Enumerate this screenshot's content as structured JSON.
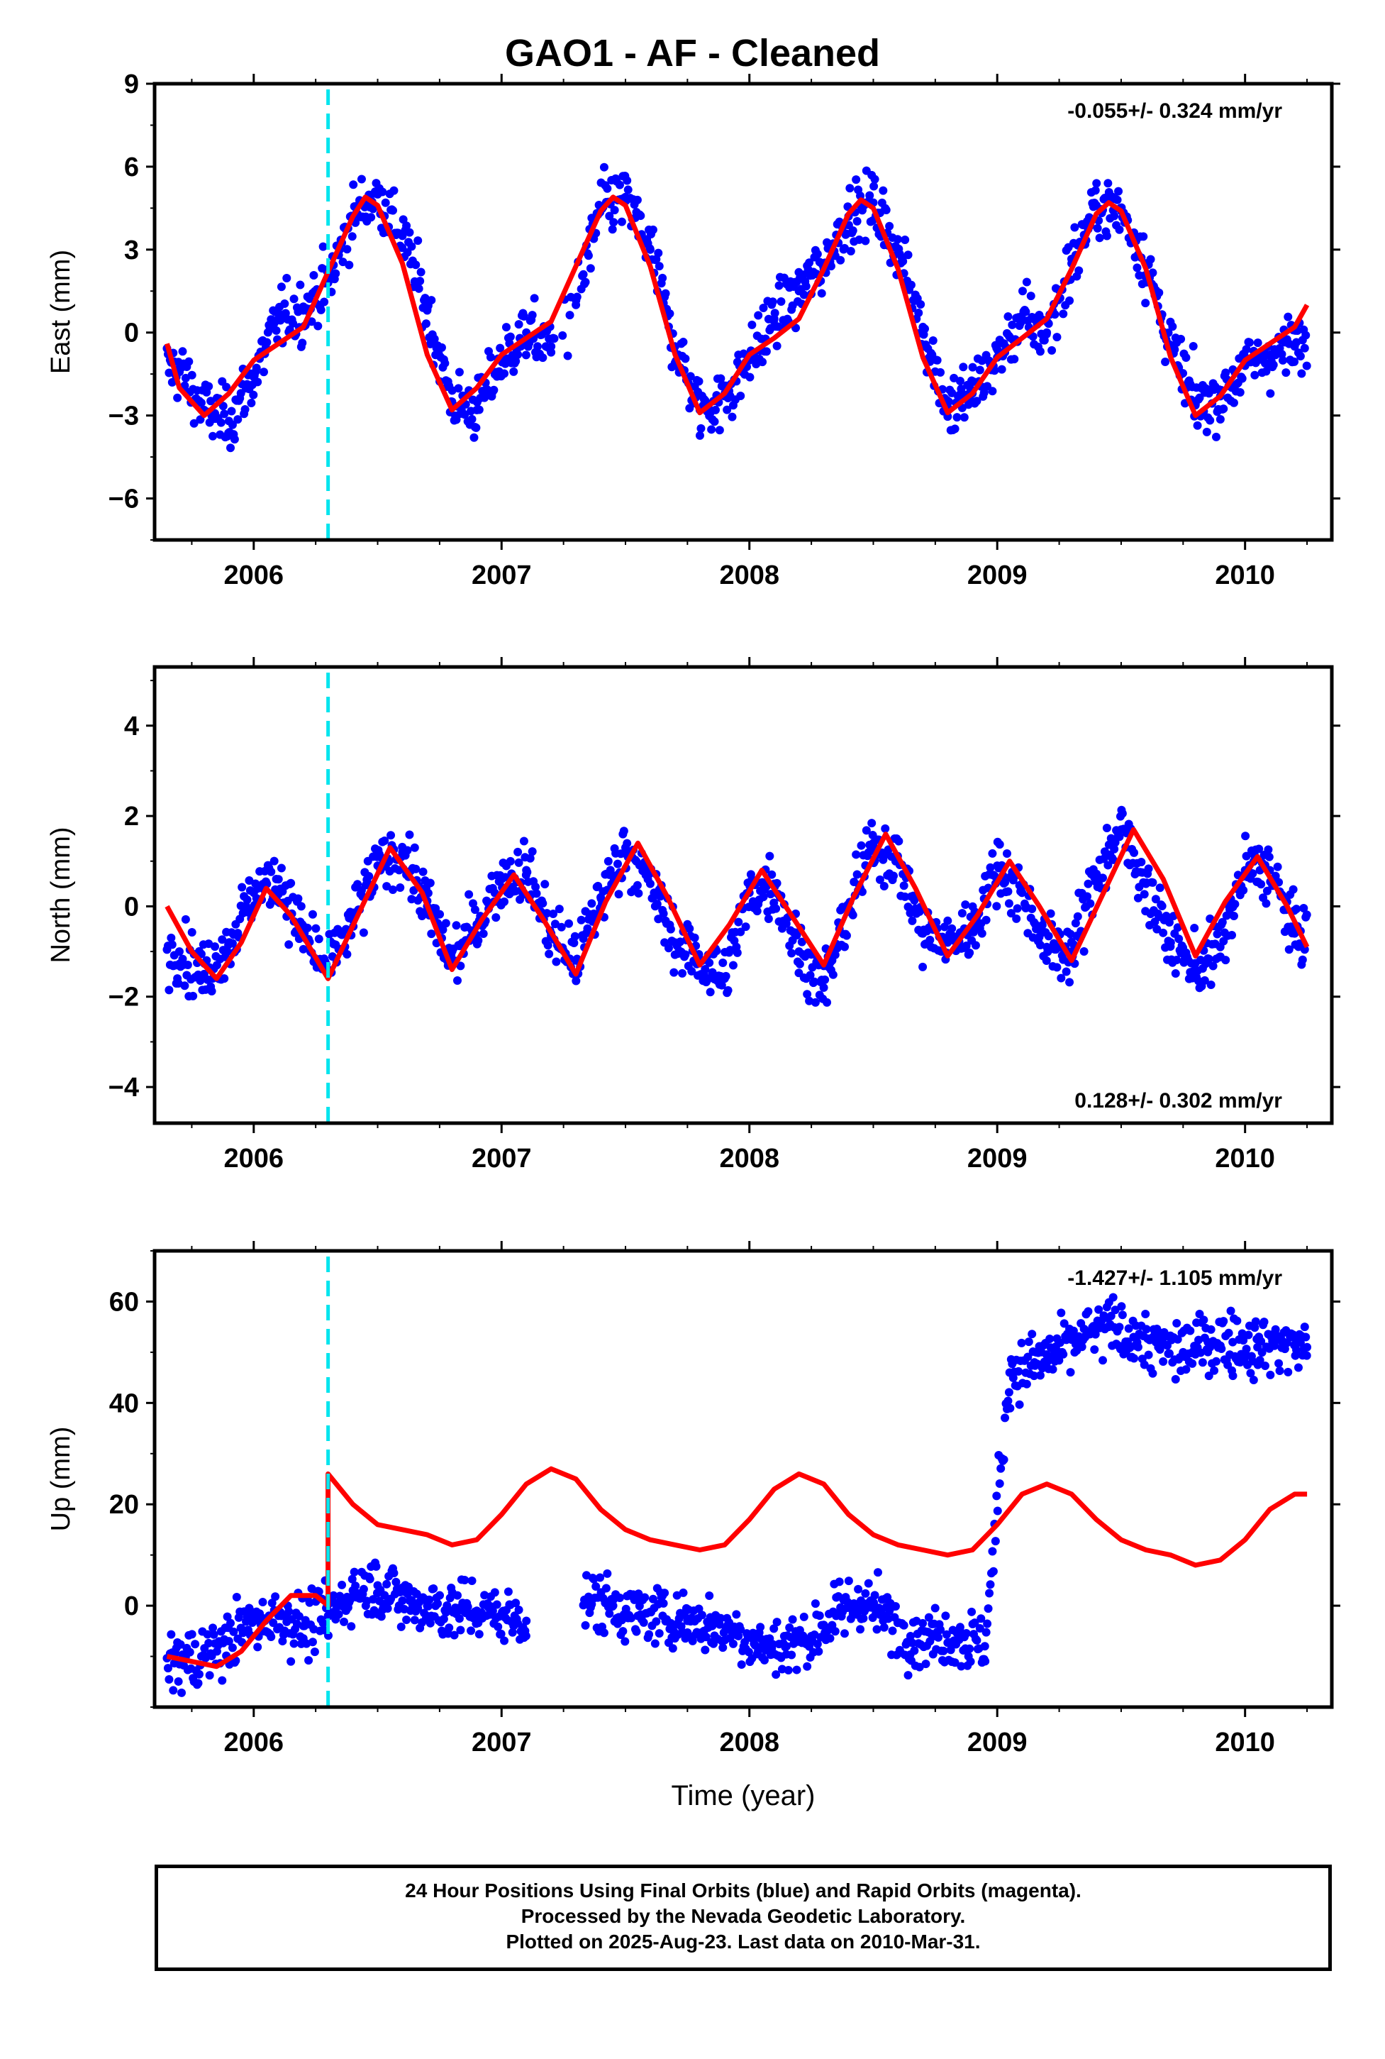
{
  "title": "GAO1  - AF - Cleaned",
  "footer": {
    "line1": "24 Hour Positions Using Final Orbits (blue) and Rapid Orbits (magenta).",
    "line2": "Processed by the Nevada Geodetic Laboratory.",
    "line3": "Plotted on 2025-Aug-23. Last data on 2010-Mar-31."
  },
  "colors": {
    "points": "#0000ff",
    "fit": "#ff0000",
    "event_line": "#00e5ee",
    "axis": "#000000"
  },
  "chart_data": [
    {
      "type": "scatter",
      "ylabel": "East (mm)",
      "xlabel": "",
      "rate_text": "-0.055+/- 0.324 mm/yr",
      "rate_position": "top-right",
      "xlim": [
        2005.6,
        2010.35
      ],
      "ylim": [
        -7.5,
        9
      ],
      "yticks": [
        -6,
        -3,
        0,
        3,
        6,
        9
      ],
      "ytick_labels": [
        "−6",
        "−3",
        "0",
        "3",
        "6",
        "9"
      ],
      "xticks": [
        2006,
        2007,
        2008,
        2009,
        2010
      ],
      "xtick_labels": [
        "2006",
        "2007",
        "2008",
        "2009",
        "2010"
      ],
      "event_x": 2006.3,
      "data_range": [
        2005.65,
        2010.25
      ],
      "series": [
        {
          "kind": "points",
          "x": [
            2005.7,
            2005.8,
            2005.9,
            2006.0,
            2006.1,
            2006.2,
            2006.3,
            2006.4,
            2006.5,
            2006.6,
            2006.7,
            2006.8,
            2006.9,
            2007.0,
            2007.1,
            2007.2,
            2007.3,
            2007.4,
            2007.5,
            2007.6,
            2007.7,
            2007.8,
            2007.9,
            2008.0,
            2008.1,
            2008.2,
            2008.3,
            2008.4,
            2008.5,
            2008.6,
            2008.7,
            2008.8,
            2008.9,
            2009.0,
            2009.1,
            2009.2,
            2009.3,
            2009.4,
            2009.5,
            2009.6,
            2009.7,
            2009.8,
            2009.9,
            2010.0,
            2010.1,
            2010.2
          ],
          "y": [
            -1.3,
            -2.8,
            -3.2,
            -1.6,
            0.5,
            0.8,
            1.8,
            4.2,
            5.0,
            3.5,
            0.8,
            -2.5,
            -2.8,
            -1.0,
            0.0,
            -0.5,
            1.0,
            4.5,
            4.9,
            3.0,
            -0.5,
            -2.8,
            -2.3,
            -1.0,
            0.5,
            1.5,
            2.5,
            4.2,
            4.7,
            3.0,
            0.2,
            -2.7,
            -2.2,
            -0.9,
            0.5,
            0.0,
            2.5,
            4.6,
            4.4,
            2.5,
            -0.5,
            -2.6,
            -2.3,
            -1.2,
            -0.8,
            -0.5
          ]
        },
        {
          "kind": "fit",
          "x": [
            2005.65,
            2005.7,
            2005.8,
            2005.9,
            2006.0,
            2006.1,
            2006.2,
            2006.3,
            2006.4,
            2006.45,
            2006.5,
            2006.6,
            2006.7,
            2006.8,
            2006.9,
            2007.0,
            2007.1,
            2007.2,
            2007.3,
            2007.4,
            2007.45,
            2007.5,
            2007.6,
            2007.7,
            2007.8,
            2007.9,
            2008.0,
            2008.1,
            2008.2,
            2008.3,
            2008.4,
            2008.45,
            2008.5,
            2008.6,
            2008.7,
            2008.8,
            2008.9,
            2009.0,
            2009.1,
            2009.2,
            2009.3,
            2009.4,
            2009.45,
            2009.5,
            2009.6,
            2009.7,
            2009.8,
            2009.9,
            2010.0,
            2010.1,
            2010.2,
            2010.25
          ],
          "y": [
            -0.4,
            -2.0,
            -3.0,
            -2.2,
            -1.0,
            -0.4,
            0.2,
            2.2,
            4.2,
            4.9,
            4.6,
            2.5,
            -0.8,
            -2.8,
            -2.0,
            -0.8,
            -0.2,
            0.4,
            2.4,
            4.4,
            4.9,
            4.6,
            2.4,
            -0.8,
            -2.9,
            -2.2,
            -0.8,
            -0.2,
            0.5,
            2.3,
            4.3,
            4.8,
            4.5,
            2.3,
            -0.9,
            -2.9,
            -2.2,
            -0.9,
            -0.2,
            0.5,
            2.3,
            4.3,
            4.7,
            4.4,
            2.3,
            -0.9,
            -3.0,
            -2.3,
            -1.0,
            -0.4,
            0.2,
            1.0
          ]
        }
      ]
    },
    {
      "type": "scatter",
      "ylabel": "North (mm)",
      "xlabel": "",
      "rate_text": "0.128+/- 0.302 mm/yr",
      "rate_position": "bottom-right",
      "xlim": [
        2005.6,
        2010.35
      ],
      "ylim": [
        -4.8,
        5.3
      ],
      "yticks": [
        -4,
        -2,
        0,
        2,
        4
      ],
      "ytick_labels": [
        "−4",
        "−2",
        "0",
        "2",
        "4"
      ],
      "xticks": [
        2006,
        2007,
        2008,
        2009,
        2010
      ],
      "xtick_labels": [
        "2006",
        "2007",
        "2008",
        "2009",
        "2010"
      ],
      "event_x": 2006.3,
      "data_range": [
        2005.65,
        2010.25
      ],
      "series": [
        {
          "kind": "points",
          "x": [
            2005.7,
            2005.8,
            2005.9,
            2006.0,
            2006.1,
            2006.2,
            2006.3,
            2006.4,
            2006.5,
            2006.6,
            2006.7,
            2006.8,
            2006.9,
            2007.0,
            2007.1,
            2007.2,
            2007.3,
            2007.4,
            2007.5,
            2007.6,
            2007.7,
            2007.8,
            2007.9,
            2008.0,
            2008.1,
            2008.2,
            2008.3,
            2008.4,
            2008.5,
            2008.6,
            2008.7,
            2008.8,
            2008.9,
            2009.0,
            2009.1,
            2009.2,
            2009.3,
            2009.4,
            2009.5,
            2009.6,
            2009.7,
            2009.8,
            2009.9,
            2010.0,
            2010.1,
            2010.2
          ],
          "y": [
            -1.0,
            -1.5,
            -0.8,
            0.3,
            0.6,
            -0.6,
            -1.4,
            -0.3,
            0.9,
            1.2,
            0.0,
            -1.2,
            -0.4,
            0.6,
            0.8,
            -0.6,
            -1.2,
            0.2,
            1.3,
            0.5,
            -0.8,
            -1.2,
            -1.6,
            0.3,
            0.5,
            -1.0,
            -1.8,
            -0.1,
            1.4,
            1.0,
            -0.6,
            -0.8,
            -0.5,
            0.9,
            0.3,
            -0.9,
            -1.0,
            0.7,
            1.7,
            0.5,
            -0.8,
            -1.4,
            -0.9,
            0.8,
            0.8,
            -0.6
          ]
        },
        {
          "kind": "fit",
          "x": [
            2005.65,
            2005.75,
            2005.85,
            2005.95,
            2006.05,
            2006.15,
            2006.3,
            2006.42,
            2006.55,
            2006.68,
            2006.8,
            2006.92,
            2007.05,
            2007.17,
            2007.3,
            2007.42,
            2007.55,
            2007.67,
            2007.8,
            2007.92,
            2008.05,
            2008.17,
            2008.3,
            2008.42,
            2008.55,
            2008.67,
            2008.8,
            2008.92,
            2009.05,
            2009.17,
            2009.3,
            2009.42,
            2009.55,
            2009.67,
            2009.8,
            2009.92,
            2010.05,
            2010.17,
            2010.25
          ],
          "y": [
            0.0,
            -1.0,
            -1.6,
            -0.8,
            0.4,
            -0.2,
            -1.6,
            -0.2,
            1.3,
            0.3,
            -1.4,
            -0.3,
            0.7,
            -0.3,
            -1.5,
            0.1,
            1.4,
            0.2,
            -1.3,
            -0.4,
            0.8,
            -0.2,
            -1.3,
            0.2,
            1.6,
            0.4,
            -1.1,
            -0.2,
            1.0,
            0.0,
            -1.2,
            0.2,
            1.7,
            0.6,
            -1.1,
            0.1,
            1.1,
            0.0,
            -0.9
          ]
        }
      ]
    },
    {
      "type": "scatter",
      "ylabel": "Up (mm)",
      "xlabel": "Time (year)",
      "rate_text": "-1.427+/- 1.105 mm/yr",
      "rate_position": "top-right",
      "xlim": [
        2005.6,
        2010.35
      ],
      "ylim": [
        -20,
        70
      ],
      "yticks": [
        0,
        20,
        40,
        60
      ],
      "ytick_labels": [
        "0",
        "20",
        "40",
        "60"
      ],
      "xticks": [
        2006,
        2007,
        2008,
        2009,
        2010
      ],
      "xtick_labels": [
        "2006",
        "2007",
        "2008",
        "2009",
        "2010"
      ],
      "event_x": 2006.3,
      "data_range": [
        2005.65,
        2010.25
      ],
      "series": [
        {
          "kind": "points",
          "x": [
            2005.7,
            2005.8,
            2005.9,
            2006.0,
            2006.1,
            2006.2,
            2006.3,
            2006.4,
            2006.5,
            2006.6,
            2006.7,
            2006.8,
            2006.9,
            2007.0,
            2007.1,
            2007.35,
            2007.45,
            2007.55,
            2007.65,
            2007.75,
            2007.85,
            2007.95,
            2008.05,
            2008.15,
            2008.25,
            2008.35,
            2008.45,
            2008.55,
            2008.65,
            2008.75,
            2008.85,
            2008.95,
            2009.05,
            2009.15,
            2009.25,
            2009.35,
            2009.45,
            2009.55,
            2009.65,
            2009.75,
            2009.85,
            2009.95,
            2010.05,
            2010.15,
            2010.25
          ],
          "y": [
            -11,
            -10,
            -7,
            -3,
            -2,
            -4,
            -2,
            3,
            4,
            1,
            0,
            -1,
            -1,
            -2,
            -3,
            1,
            0,
            -2,
            -2,
            -3,
            -4,
            -5,
            -8,
            -8,
            -6,
            -2,
            1,
            -2,
            -6,
            -6,
            -6,
            -8,
            46,
            48,
            50,
            53,
            55,
            53,
            51,
            50,
            52,
            52,
            51,
            52,
            51
          ]
        },
        {
          "kind": "fit",
          "x": [
            2005.65,
            2005.75,
            2005.85,
            2005.95,
            2006.05,
            2006.15,
            2006.25,
            2006.3,
            2006.3,
            2006.4,
            2006.5,
            2006.6,
            2006.7,
            2006.8,
            2006.9,
            2007.0,
            2007.1,
            2007.2,
            2007.3,
            2007.4,
            2007.5,
            2007.6,
            2007.7,
            2007.8,
            2007.9,
            2008.0,
            2008.1,
            2008.2,
            2008.3,
            2008.4,
            2008.5,
            2008.6,
            2008.7,
            2008.8,
            2008.9,
            2009.0,
            2009.1,
            2009.2,
            2009.3,
            2009.4,
            2009.5,
            2009.6,
            2009.7,
            2009.8,
            2009.9,
            2010.0,
            2010.1,
            2010.2,
            2010.25
          ],
          "y": [
            -10,
            -11,
            -12,
            -9,
            -3,
            2,
            2,
            0,
            26,
            20,
            16,
            15,
            14,
            12,
            13,
            18,
            24,
            27,
            25,
            19,
            15,
            13,
            12,
            11,
            12,
            17,
            23,
            26,
            24,
            18,
            14,
            12,
            11,
            10,
            11,
            16,
            22,
            24,
            22,
            17,
            13,
            11,
            10,
            8,
            9,
            13,
            19,
            22,
            22
          ]
        }
      ]
    }
  ]
}
